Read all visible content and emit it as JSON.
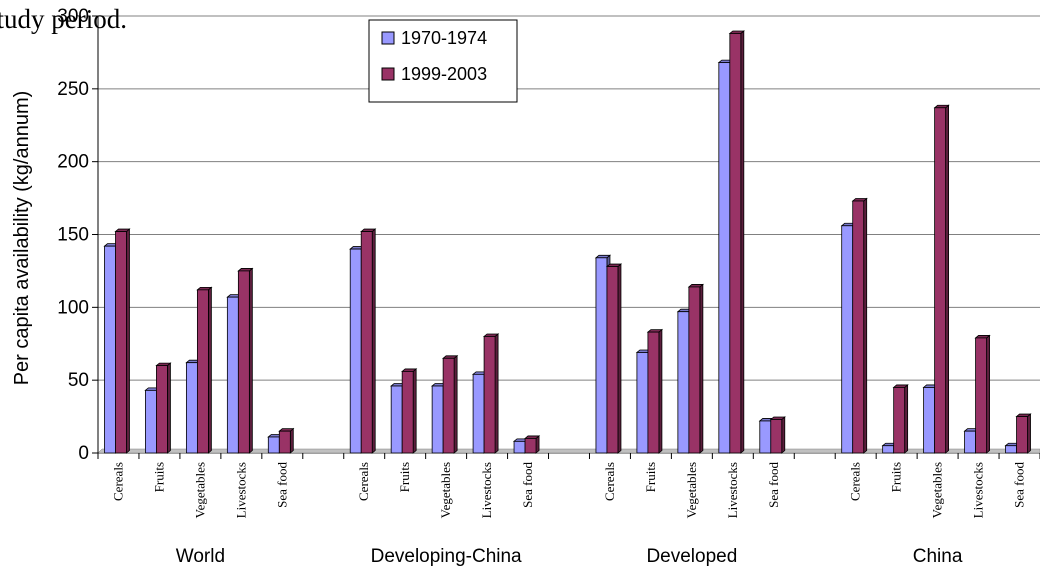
{
  "caption": "study period.",
  "chart_data": {
    "type": "bar",
    "title": "",
    "xlabel": "",
    "ylabel": "Per capita availability (kg/annum)",
    "ylim": [
      0,
      300
    ],
    "yticks": [
      0,
      50,
      100,
      150,
      200,
      250,
      300
    ],
    "grid": true,
    "legend_position": "top-center",
    "colors": {
      "1970-1974": "#9999ff",
      "1999-2003": "#993366"
    },
    "groups": [
      "World",
      "Developing-China",
      "Developed",
      "China"
    ],
    "categories": [
      "Cereals",
      "Fruits",
      "Vegetables",
      "Livestocks",
      "Sea food"
    ],
    "series": [
      {
        "name": "1970-1974",
        "values": [
          [
            142,
            43,
            62,
            107,
            11
          ],
          [
            140,
            46,
            46,
            54,
            8
          ],
          [
            134,
            69,
            97,
            268,
            22
          ],
          [
            156,
            5,
            45,
            15,
            5
          ]
        ]
      },
      {
        "name": "1999-2003",
        "values": [
          [
            152,
            60,
            112,
            125,
            15
          ],
          [
            152,
            56,
            65,
            80,
            10
          ],
          [
            128,
            83,
            114,
            288,
            23
          ],
          [
            173,
            45,
            237,
            79,
            25
          ]
        ]
      }
    ]
  }
}
